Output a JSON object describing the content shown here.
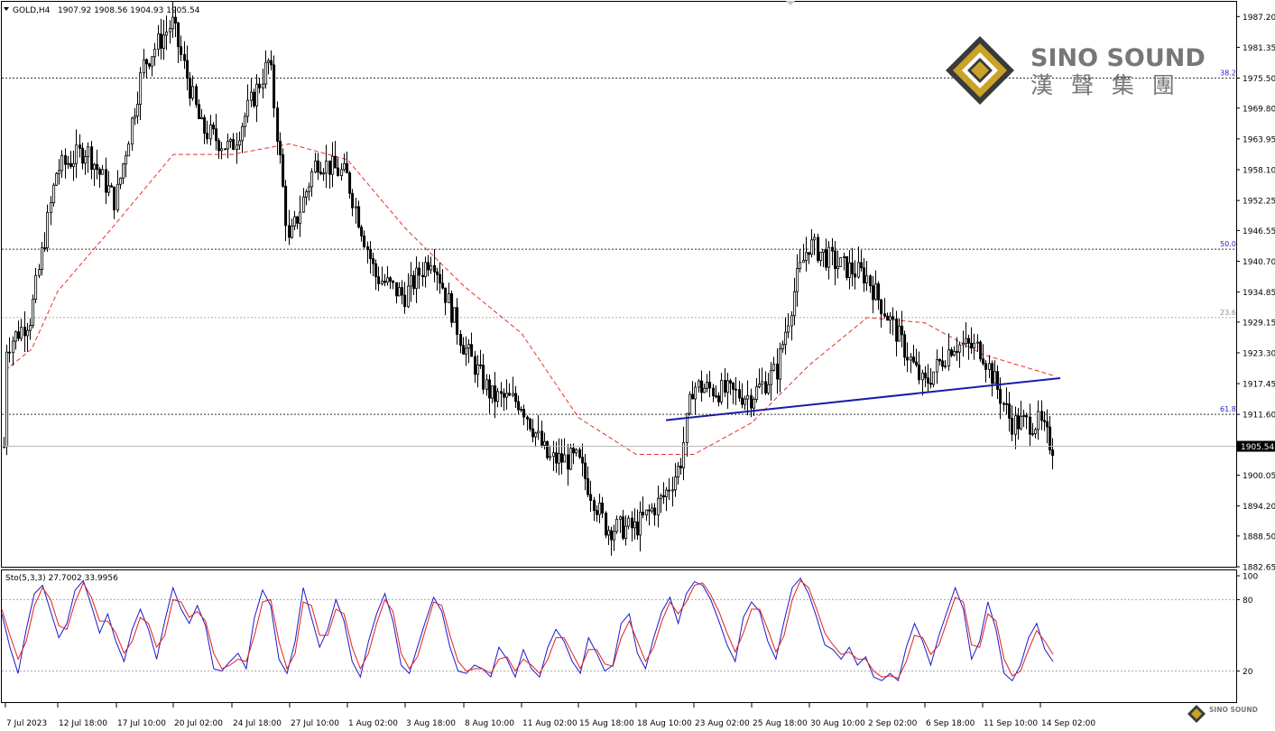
{
  "header": {
    "symbol_label": "GOLD,H4",
    "ohlc_text": "1907.92 1908.56 1904.93 1905.54"
  },
  "logo": {
    "brand_en": "SINO SOUND",
    "brand_cn": "漢 聲 集 團",
    "small_brand": "SINO SOUND"
  },
  "colors": {
    "background": "#ffffff",
    "candle": "#000000",
    "ma_line": "#e8302c",
    "trendline": "#1a1aa8",
    "fib_line": "#333333",
    "fib_label_blue": "#2424c8",
    "fib_label_gray": "#909090",
    "stoch_main": "#1a1acc",
    "stoch_signal": "#e02020",
    "logo_gold": "#c9a227",
    "logo_dark": "#3a3a3a",
    "logo_text": "#777777"
  },
  "chart_data": [
    {
      "type": "candlestick",
      "symbol": "GOLD",
      "timeframe": "H4",
      "last_price": 1905.54,
      "last_price_label": "1905.54",
      "ylim": [
        1882.65,
        1990.0
      ],
      "y_ticks": [
        1987.2,
        1981.35,
        1975.5,
        1969.8,
        1963.95,
        1958.1,
        1952.25,
        1946.55,
        1940.7,
        1934.85,
        1929.15,
        1923.3,
        1917.45,
        1911.6,
        1905.54,
        1900.05,
        1894.2,
        1888.5,
        1882.65
      ],
      "y_tick_labels": [
        "1987.20",
        "1981.35",
        "1975.50",
        "1969.80",
        "1963.95",
        "1958.10",
        "1952.25",
        "1946.55",
        "1940.70",
        "1934.85",
        "1929.15",
        "1923.30",
        "1917.45",
        "1911.60",
        "1905.54",
        "1900.05",
        "1894.20",
        "1888.50",
        "1882.65"
      ],
      "x_labels": [
        "7 Jul 2023",
        "12 Jul 18:00",
        "17 Jul 10:00",
        "20 Jul 02:00",
        "24 Jul 18:00",
        "27 Jul 10:00",
        "1 Aug 02:00",
        "3 Aug 18:00",
        "8 Aug 10:00",
        "11 Aug 02:00",
        "15 Aug 18:00",
        "18 Aug 10:00",
        "23 Aug 02:00",
        "25 Aug 18:00",
        "30 Aug 10:00",
        "2 Sep 02:00",
        "6 Sep 18:00",
        "11 Sep 10:00",
        "14 Sep 02:00"
      ],
      "fib_levels": [
        {
          "label": "38.2",
          "price": 1975.5
        },
        {
          "label": "50.0",
          "price": 1943.0
        },
        {
          "label": "23.6",
          "price": 1930.0
        },
        {
          "label": "61.8",
          "price": 1911.6
        }
      ],
      "trendline": {
        "from": {
          "x": "19 Aug",
          "price": 1910.5
        },
        "to": {
          "x": "14 Sep 06:00",
          "price": 1918.5
        }
      },
      "price_path": [
        {
          "x": "7 Jul 2023",
          "price": 1924
        },
        {
          "x": "10 Jul",
          "price": 1930
        },
        {
          "x": "12 Jul 18:00",
          "price": 1958
        },
        {
          "x": "14 Jul",
          "price": 1962
        },
        {
          "x": "17 Jul 10:00",
          "price": 1952
        },
        {
          "x": "18 Jul",
          "price": 1978
        },
        {
          "x": "20 Jul 02:00",
          "price": 1986
        },
        {
          "x": "21 Jul",
          "price": 1966
        },
        {
          "x": "24 Jul 18:00",
          "price": 1962
        },
        {
          "x": "26 Jul",
          "price": 1979
        },
        {
          "x": "27 Jul 10:00",
          "price": 1944
        },
        {
          "x": "28 Jul",
          "price": 1960
        },
        {
          "x": "1 Aug 02:00",
          "price": 1957
        },
        {
          "x": "2 Aug",
          "price": 1938
        },
        {
          "x": "3 Aug 18:00",
          "price": 1934
        },
        {
          "x": "4 Aug",
          "price": 1942
        },
        {
          "x": "8 Aug 10:00",
          "price": 1925
        },
        {
          "x": "9 Aug",
          "price": 1915
        },
        {
          "x": "11 Aug 02:00",
          "price": 1914
        },
        {
          "x": "14 Aug",
          "price": 1903
        },
        {
          "x": "15 Aug 18:00",
          "price": 1903
        },
        {
          "x": "17 Aug",
          "price": 1890
        },
        {
          "x": "18 Aug 10:00",
          "price": 1890
        },
        {
          "x": "21 Aug",
          "price": 1896
        },
        {
          "x": "22 Aug",
          "price": 1902
        },
        {
          "x": "23 Aug 02:00",
          "price": 1917
        },
        {
          "x": "25 Aug 18:00",
          "price": 1915
        },
        {
          "x": "28 Aug",
          "price": 1920
        },
        {
          "x": "29 Aug",
          "price": 1937
        },
        {
          "x": "30 Aug 10:00",
          "price": 1944
        },
        {
          "x": "1 Sep",
          "price": 1940
        },
        {
          "x": "2 Sep 02:00",
          "price": 1938
        },
        {
          "x": "5 Sep",
          "price": 1927
        },
        {
          "x": "6 Sep 18:00",
          "price": 1917
        },
        {
          "x": "8 Sep",
          "price": 1925
        },
        {
          "x": "11 Sep 10:00",
          "price": 1924
        },
        {
          "x": "12 Sep",
          "price": 1910
        },
        {
          "x": "14 Sep 02:00",
          "price": 1910
        },
        {
          "x": "14 Sep 06:00",
          "price": 1905.54
        }
      ],
      "ma_path": [
        {
          "x": "7 Jul 2023",
          "price": 1920
        },
        {
          "x": "10 Jul",
          "price": 1924
        },
        {
          "x": "12 Jul 18:00",
          "price": 1935
        },
        {
          "x": "17 Jul 10:00",
          "price": 1948
        },
        {
          "x": "20 Jul 02:00",
          "price": 1961
        },
        {
          "x": "24 Jul 18:00",
          "price": 1961
        },
        {
          "x": "27 Jul 10:00",
          "price": 1963
        },
        {
          "x": "1 Aug 02:00",
          "price": 1960
        },
        {
          "x": "3 Aug 18:00",
          "price": 1947
        },
        {
          "x": "8 Aug 10:00",
          "price": 1936
        },
        {
          "x": "11 Aug 02:00",
          "price": 1927
        },
        {
          "x": "15 Aug 18:00",
          "price": 1911
        },
        {
          "x": "18 Aug 10:00",
          "price": 1904
        },
        {
          "x": "23 Aug 02:00",
          "price": 1904
        },
        {
          "x": "25 Aug 18:00",
          "price": 1910
        },
        {
          "x": "30 Aug 10:00",
          "price": 1921
        },
        {
          "x": "2 Sep 02:00",
          "price": 1930
        },
        {
          "x": "6 Sep 18:00",
          "price": 1929
        },
        {
          "x": "11 Sep 10:00",
          "price": 1923
        },
        {
          "x": "14 Sep 06:00",
          "price": 1919
        }
      ]
    },
    {
      "type": "line",
      "indicator_label": "Sto(5,3,3) 27.7002 33.9956",
      "main_value": 27.7002,
      "signal_value": 33.9956,
      "ylim": [
        0,
        100
      ],
      "y_tick_labels": [
        "100",
        "80",
        "20"
      ],
      "y_ticks": [
        100,
        80,
        20
      ],
      "levels": [
        80,
        20
      ],
      "series": [
        {
          "values": [
            68,
            40,
            18,
            55,
            85,
            92,
            70,
            48,
            60,
            88,
            96,
            75,
            52,
            68,
            45,
            28,
            55,
            72,
            55,
            30,
            62,
            90,
            72,
            60,
            75,
            58,
            22,
            20,
            28,
            35,
            22,
            65,
            88,
            75,
            30,
            18,
            45,
            90,
            65,
            40,
            55,
            80,
            62,
            28,
            15,
            45,
            68,
            85,
            62,
            25,
            18,
            40,
            62,
            82,
            70,
            40,
            20,
            18,
            25,
            22,
            15,
            40,
            30,
            15,
            38,
            22,
            15,
            40,
            55,
            45,
            28,
            18,
            48,
            35,
            20,
            25,
            60,
            68,
            35,
            22,
            48,
            70,
            82,
            60,
            85,
            95,
            92,
            80,
            62,
            42,
            28,
            65,
            78,
            70,
            45,
            30,
            62,
            90,
            98,
            85,
            65,
            42,
            38,
            30,
            40,
            25,
            32,
            15,
            12,
            18,
            12,
            40,
            60,
            45,
            25,
            50,
            70,
            90,
            72,
            30,
            45,
            78,
            55,
            18,
            12,
            25,
            48,
            60,
            38,
            28
          ]
        },
        {
          "values": [
            72,
            50,
            30,
            45,
            75,
            90,
            80,
            58,
            55,
            78,
            94,
            82,
            62,
            62,
            52,
            35,
            45,
            65,
            60,
            40,
            50,
            80,
            78,
            65,
            70,
            62,
            35,
            22,
            25,
            30,
            28,
            50,
            78,
            80,
            45,
            22,
            35,
            78,
            75,
            50,
            50,
            72,
            68,
            40,
            22,
            35,
            60,
            80,
            70,
            35,
            22,
            32,
            55,
            78,
            75,
            50,
            28,
            20,
            22,
            22,
            18,
            30,
            32,
            20,
            30,
            25,
            18,
            30,
            48,
            48,
            35,
            22,
            38,
            38,
            26,
            24,
            48,
            62,
            45,
            28,
            40,
            62,
            78,
            68,
            78,
            92,
            94,
            84,
            70,
            52,
            36,
            52,
            72,
            72,
            55,
            36,
            50,
            80,
            96,
            90,
            72,
            52,
            42,
            34,
            36,
            30,
            30,
            20,
            15,
            16,
            14,
            28,
            50,
            48,
            34,
            42,
            62,
            82,
            78,
            42,
            40,
            68,
            62,
            30,
            16,
            20,
            38,
            54,
            45,
            34
          ]
        }
      ]
    }
  ]
}
